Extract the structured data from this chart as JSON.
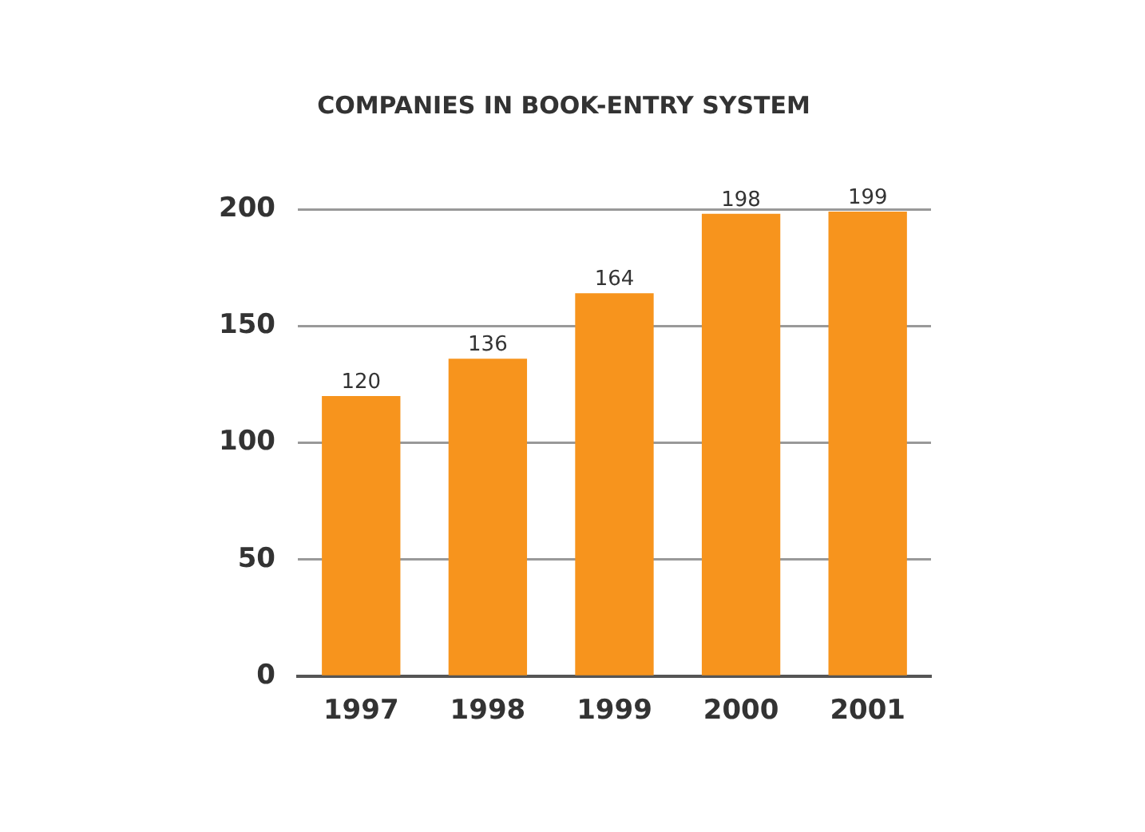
{
  "chart_data": {
    "type": "bar",
    "title": "COMPANIES IN BOOK-ENTRY SYSTEM",
    "categories": [
      "1997",
      "1998",
      "1999",
      "2000",
      "2001"
    ],
    "values": [
      120,
      136,
      164,
      198,
      199
    ],
    "color": "#f7941d",
    "ylim": [
      0,
      200
    ],
    "yticks": [
      0,
      50,
      100,
      150,
      200
    ],
    "grid": "y",
    "data_labels": true
  }
}
